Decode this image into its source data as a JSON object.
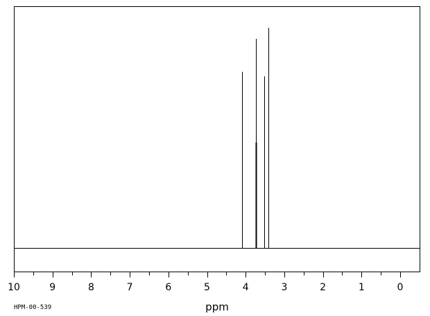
{
  "chart_data": {
    "type": "line",
    "title": "",
    "xlabel": "ppm",
    "ylabel": "",
    "xlim": [
      10,
      -0.5
    ],
    "xaxis_reversed": true,
    "x_ticks": [
      "10",
      "9",
      "8",
      "7",
      "6",
      "5",
      "4",
      "3",
      "2",
      "1",
      "0"
    ],
    "grid": false,
    "legend": "none",
    "baseline": 0,
    "ylim": [
      0,
      1
    ],
    "peaks": [
      {
        "x": 4.1,
        "y": 0.8
      },
      {
        "x": 3.74,
        "y": 0.95
      },
      {
        "x": 3.73,
        "y": 0.48
      },
      {
        "x": 3.52,
        "y": 0.78
      },
      {
        "x": 3.42,
        "y": 1.0
      }
    ],
    "line_color": "#000000"
  },
  "footer": {
    "id": "HPM-00-539"
  }
}
